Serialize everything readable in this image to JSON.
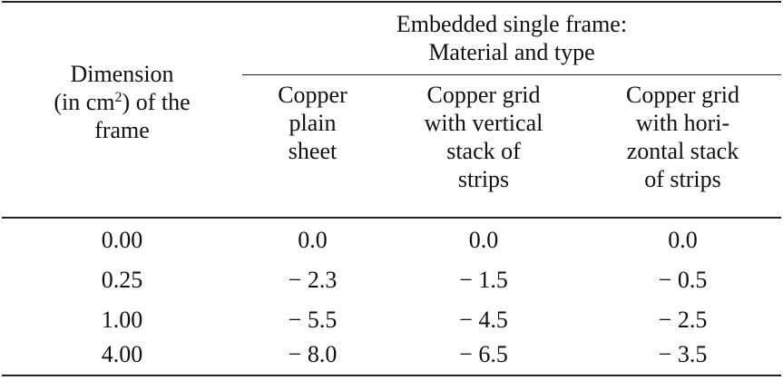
{
  "table": {
    "header_group_lines": [
      "Embedded single frame:",
      "Material and type"
    ],
    "row_header_lines": [
      "Dimension",
      "(in cm",
      "2",
      ") of the",
      "frame"
    ],
    "columns": [
      {
        "lines": [
          "Copper",
          "plain",
          "sheet"
        ]
      },
      {
        "lines": [
          "Copper grid",
          "with vertical",
          "stack of",
          "strips"
        ]
      },
      {
        "lines": [
          "Copper grid",
          "with hori-",
          "zontal stack",
          "of strips"
        ]
      }
    ],
    "rows": [
      {
        "dimension": "0.00",
        "values": [
          "0.0",
          "0.0",
          "0.0"
        ]
      },
      {
        "dimension": "0.25",
        "values": [
          "− 2.3",
          "− 1.5",
          "− 0.5"
        ]
      },
      {
        "dimension": "1.00",
        "values": [
          "− 5.5",
          "− 4.5",
          "− 2.5"
        ]
      },
      {
        "dimension": "4.00",
        "values": [
          "− 8.0",
          "− 6.5",
          "− 3.5"
        ]
      }
    ]
  }
}
